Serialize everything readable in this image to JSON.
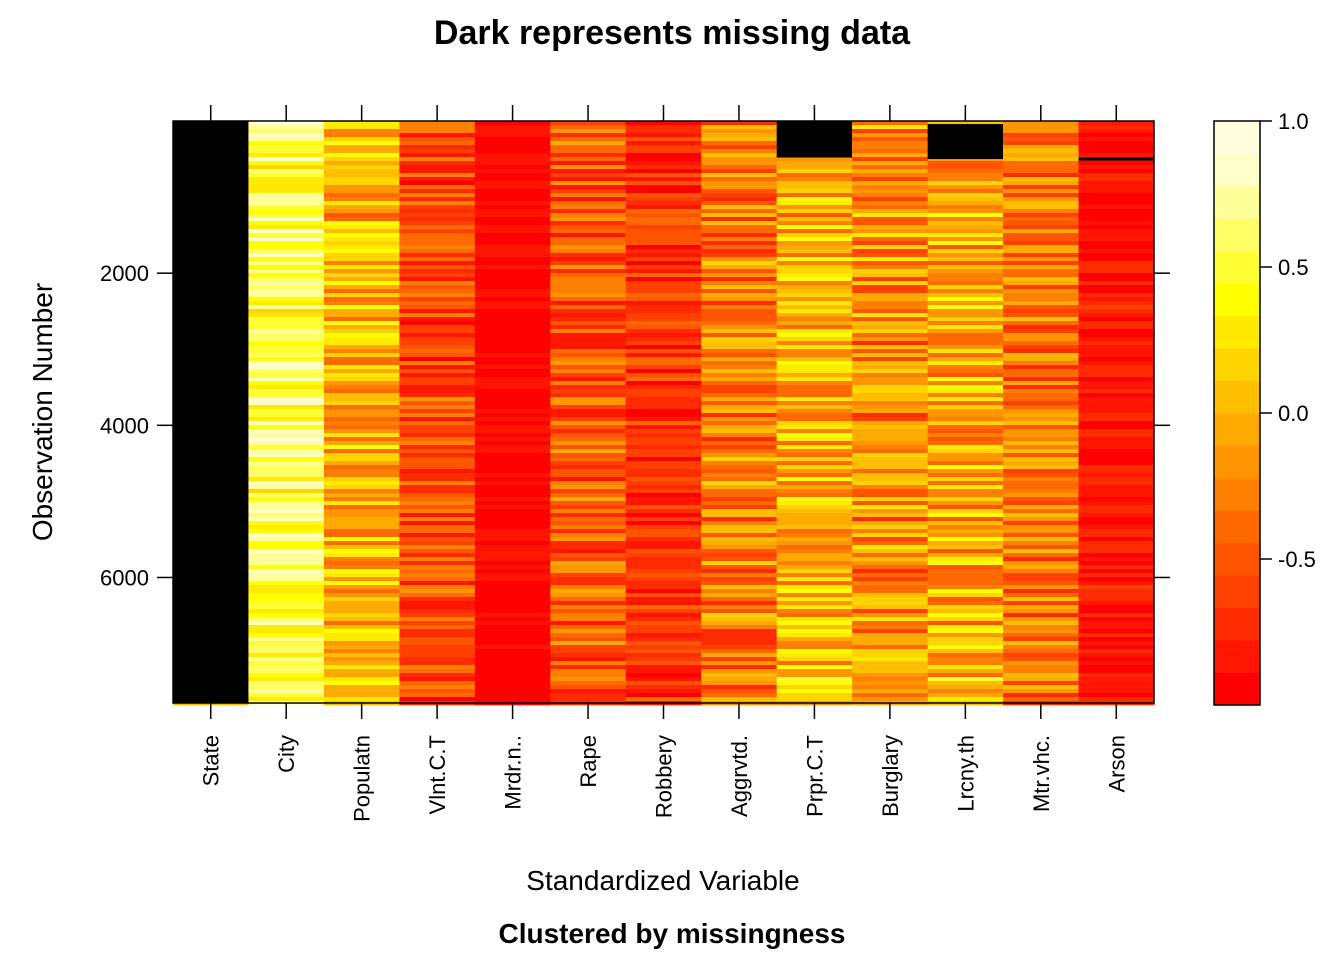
{
  "chart_data": {
    "type": "heatmap",
    "title": "Dark represents missing data",
    "subtitle": "Clustered by missingness",
    "xlabel": "Standardized Variable",
    "ylabel": "Observation Number",
    "variables": [
      "State",
      "City",
      "Populatn",
      "Vlnt.C.T",
      "Mrdr.n..",
      "Rape",
      "Robbery",
      "Aggrvtd.",
      "Prpr.C.T",
      "Burglary",
      "Lrcny.th",
      "Mtr.vhc.",
      "Arson"
    ],
    "y_ticks": [
      2000,
      4000,
      6000
    ],
    "y_range": [
      0,
      7650
    ],
    "y_reversed": true,
    "value_range": [
      -1.0,
      1.0
    ],
    "colorbar_ticks": [
      -0.5,
      0.0,
      0.5,
      1.0
    ],
    "colorbar_tick_labels": [
      "-0.5",
      "0.0",
      "0.5",
      "1.0"
    ],
    "palette": [
      "#ff0000",
      "#ff1500",
      "#ff2b00",
      "#ff4000",
      "#ff5500",
      "#ff6a00",
      "#ff8000",
      "#ff9500",
      "#ffaa00",
      "#ffbf00",
      "#ffd400",
      "#ffea00",
      "#ffff00",
      "#ffff33",
      "#ffff66",
      "#ffff99",
      "#ffffcc",
      "#ffffdd"
    ],
    "missing_color": "#000000",
    "columns": [
      {
        "name": "State",
        "missing": [
          [
            0,
            7650
          ]
        ],
        "mean": 0.0,
        "spread": 0.0
      },
      {
        "name": "City",
        "missing": [],
        "mean": 0.55,
        "spread": 0.35
      },
      {
        "name": "Populatn",
        "missing": [],
        "mean": 0.0,
        "spread": 0.45
      },
      {
        "name": "Vlnt.C.T",
        "missing": [],
        "mean": -0.55,
        "spread": 0.35
      },
      {
        "name": "Mrdr.n..",
        "missing": [],
        "mean": -0.92,
        "spread": 0.08
      },
      {
        "name": "Rape",
        "missing": [],
        "mean": -0.45,
        "spread": 0.4
      },
      {
        "name": "Robbery",
        "missing": [],
        "mean": -0.7,
        "spread": 0.3
      },
      {
        "name": "Aggrvtd.",
        "missing": [],
        "mean": -0.3,
        "spread": 0.45
      },
      {
        "name": "Prpr.C.T",
        "missing": [
          [
            0,
            480
          ]
        ],
        "mean": 0.0,
        "spread": 0.45
      },
      {
        "name": "Burglary",
        "missing": [],
        "mean": -0.2,
        "spread": 0.5
      },
      {
        "name": "Lrcny.th",
        "missing": [
          [
            40,
            500
          ]
        ],
        "mean": -0.05,
        "spread": 0.5
      },
      {
        "name": "Mtr.vhc.",
        "missing": [],
        "mean": -0.3,
        "spread": 0.4
      },
      {
        "name": "Arson",
        "missing": [
          [
            480,
            520
          ]
        ],
        "mean": -0.85,
        "spread": 0.2
      }
    ]
  }
}
